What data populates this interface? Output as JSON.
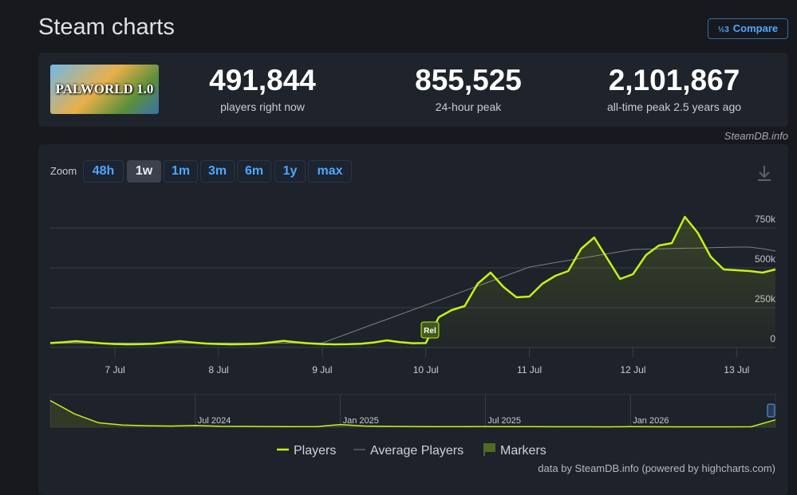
{
  "header": {
    "title": "Steam charts",
    "compare_button": "Compare"
  },
  "game": {
    "image_text": "PALWORLD 1.0"
  },
  "stats": [
    {
      "value": "491,844",
      "label": "players right now"
    },
    {
      "value": "855,525",
      "label": "24-hour peak"
    },
    {
      "value": "2,101,867",
      "label": "all-time peak 2.5 years ago"
    }
  ],
  "source_tag": "SteamDB.info",
  "zoom": {
    "label": "Zoom",
    "buttons": [
      "48h",
      "1w",
      "1m",
      "3m",
      "6m",
      "1y",
      "max"
    ],
    "active": "1w"
  },
  "chart_data": {
    "type": "line",
    "categories": [
      null,
      null,
      null,
      null,
      null,
      "7 Jul",
      null,
      null,
      null,
      null,
      null,
      null,
      null,
      "8 Jul",
      null,
      null,
      null,
      null,
      null,
      null,
      null,
      "9 Jul",
      null,
      null,
      null,
      null,
      null,
      null,
      null,
      "10 Jul",
      null,
      null,
      null,
      null,
      null,
      null,
      null,
      "11 Jul",
      null,
      null,
      null,
      null,
      null,
      null,
      null,
      "12 Jul",
      null,
      null,
      null,
      null,
      null,
      null,
      null,
      "13 Jul",
      null,
      null,
      null
    ],
    "series": [
      {
        "name": "Players",
        "color": "#c4f217",
        "values": [
          28000,
          33000,
          40000,
          33000,
          26000,
          22000,
          20000,
          21000,
          24000,
          32000,
          40000,
          32000,
          25000,
          22000,
          20000,
          21000,
          24000,
          32000,
          42000,
          33000,
          26000,
          22000,
          20000,
          21000,
          24000,
          32000,
          45000,
          34000,
          27000,
          28000,
          190000,
          235000,
          260000,
          400000,
          470000,
          380000,
          315000,
          320000,
          400000,
          450000,
          480000,
          620000,
          690000,
          560000,
          430000,
          460000,
          580000,
          640000,
          655000,
          820000,
          720000,
          570000,
          490000,
          485000,
          480000,
          470000,
          490000
        ]
      },
      {
        "name": "Average Players",
        "color": "#7b7f86",
        "values": [
          28000,
          28000,
          28000,
          28000,
          28000,
          28000,
          28000,
          28000,
          28000,
          28000,
          28000,
          28000,
          28000,
          28000,
          28000,
          28000,
          28000,
          28000,
          28000,
          28000,
          28000,
          28000,
          58000,
          88000,
          118000,
          148000,
          177000,
          207000,
          237000,
          267000,
          296000,
          326000,
          356000,
          386000,
          415000,
          445000,
          475000,
          505000,
          519000,
          533000,
          546000,
          560000,
          574000,
          588000,
          601000,
          615000,
          617000,
          619000,
          621000,
          623000,
          624000,
          626000,
          628000,
          630000,
          630000,
          620000,
          605000
        ]
      }
    ],
    "ylim": [
      0,
      1000000
    ],
    "yticks": [
      0,
      {
        "value": 250000,
        "label": "250k"
      },
      {
        "value": 500000,
        "label": "500k"
      },
      {
        "value": 750000,
        "label": "750k"
      }
    ],
    "grid": true,
    "markers": {
      "name": "Markers",
      "items": [
        "Rel"
      ]
    },
    "navigator": {
      "categories": [
        null,
        null,
        null,
        null,
        null,
        null,
        "Jul 2024",
        null,
        null,
        null,
        null,
        null,
        "Jan 2025",
        null,
        null,
        null,
        null,
        null,
        "Jul 2025",
        null,
        null,
        null,
        null,
        null,
        "Jan 2026",
        null,
        null,
        null,
        null,
        null,
        null
      ],
      "values": [
        1800000,
        900000,
        300000,
        150000,
        100000,
        80000,
        120000,
        70000,
        60000,
        50000,
        40000,
        45000,
        180000,
        80000,
        60000,
        50000,
        40000,
        35000,
        50000,
        40000,
        35000,
        30000,
        30000,
        28000,
        40000,
        30000,
        28000,
        25000,
        25000,
        30000,
        500000
      ],
      "ylim": [
        0,
        2200000
      ]
    }
  },
  "footer": "data by SteamDB.info (powered by highcharts.com)"
}
